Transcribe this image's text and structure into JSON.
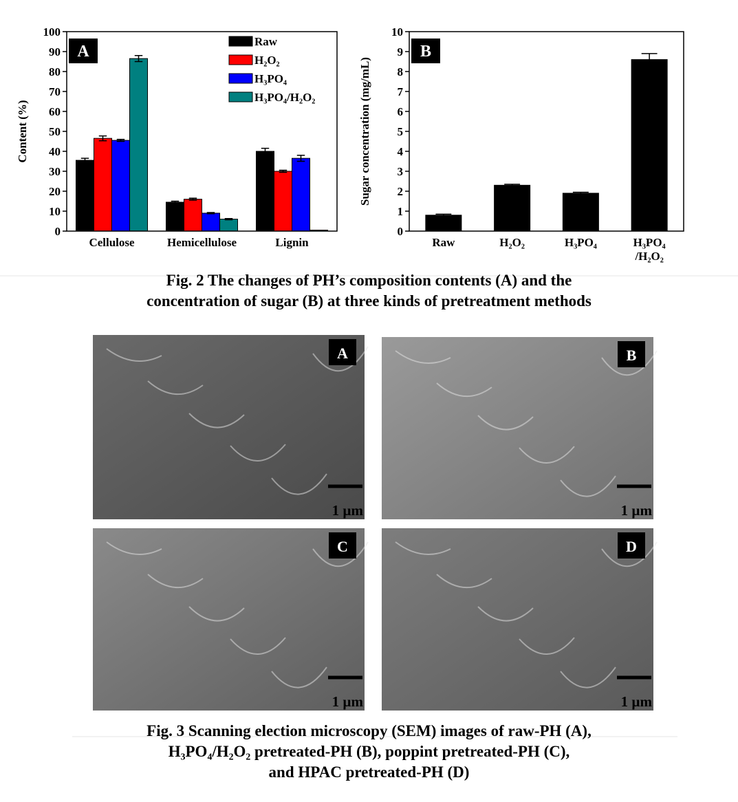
{
  "chart_data": [
    {
      "type": "bar",
      "panel": "A",
      "ylabel": "Content (%)",
      "categories": [
        "Cellulose",
        "Hemicellulose",
        "Lignin"
      ],
      "series": [
        {
          "name": "Raw",
          "color": "#000000",
          "values": [
            35.5,
            14.5,
            40
          ],
          "errors": [
            1,
            0.5,
            1.5
          ]
        },
        {
          "name": "H₂O₂",
          "color": "#ff0000",
          "values": [
            46.5,
            16,
            30
          ],
          "errors": [
            1.2,
            0.5,
            0.5
          ]
        },
        {
          "name": "H₃PO₄",
          "color": "#0000ff",
          "values": [
            45.5,
            9,
            36.5
          ],
          "errors": [
            0.5,
            0.3,
            1.5
          ]
        },
        {
          "name": "H₃PO₄/H₂O₂",
          "color": "#008080",
          "values": [
            86.5,
            6,
            0.5
          ],
          "errors": [
            1.5,
            0.3,
            0
          ]
        }
      ],
      "ylim": [
        0,
        100
      ],
      "yticks": [
        0,
        10,
        20,
        30,
        40,
        50,
        60,
        70,
        80,
        90,
        100
      ]
    },
    {
      "type": "bar",
      "panel": "B",
      "ylabel": "Sugar concentration (mg/mL)",
      "categories": [
        "Raw",
        "H₂O₂",
        "H₃PO₄",
        "H₃PO₄\n/H₂O₂"
      ],
      "color": "#000000",
      "values": [
        0.8,
        2.3,
        1.9,
        8.6
      ],
      "errors": [
        0.05,
        0.05,
        0.05,
        0.3
      ],
      "ylim": [
        0,
        10
      ],
      "yticks": [
        0,
        1,
        2,
        3,
        4,
        5,
        6,
        7,
        8,
        9,
        10
      ]
    }
  ],
  "fig2_caption": "Fig. 2 The changes of PH’s composition contents (A) and the\nconcentration of sugar (B) at three kinds of pretreatment methods",
  "sem_panels": [
    {
      "label": "A",
      "scale": "1 µm"
    },
    {
      "label": "B",
      "scale": "1 µm"
    },
    {
      "label": "C",
      "scale": "1 µm"
    },
    {
      "label": "D",
      "scale": "1 µm"
    }
  ],
  "fig3_caption": "Fig. 3 Scanning election microscopy (SEM) images of raw-PH (A),\nH₃PO₄/H₂O₂ pretreated-PH (B), poppint pretreated-PH (C),\nand HPAC pretreated-PH (D)"
}
